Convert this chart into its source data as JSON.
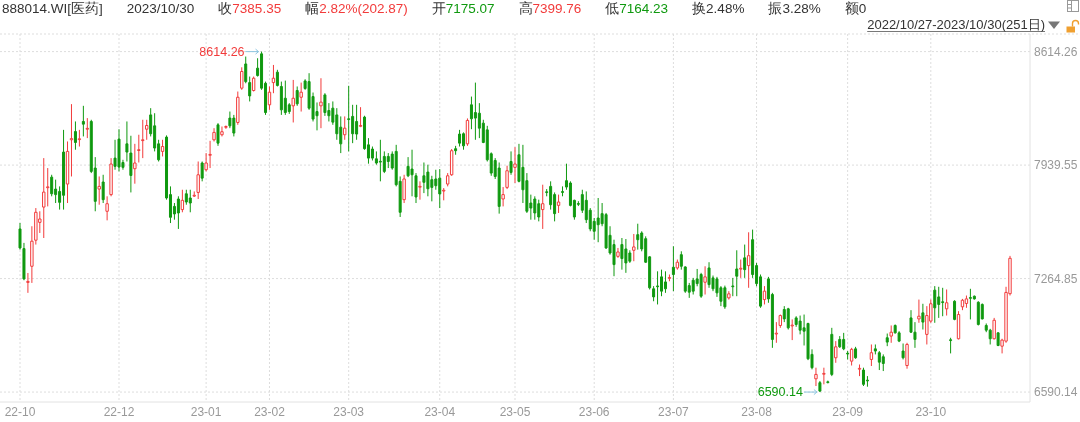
{
  "chart_data": {
    "type": "candlestick",
    "title": "888014.WI[医药]",
    "subtitle": "2022/10/27-2023/10/30(251日)",
    "annotations": [
      "2023/10/30",
      "收7385.35",
      "幅2.82%(202.87)",
      "开7175.07",
      "高7399.76",
      "低7164.23",
      "换2.48%",
      "振3.28%",
      "额0",
      "8614.26",
      "6590.14"
    ],
    "categories": [
      "22-10",
      null,
      null,
      null,
      null,
      null,
      null,
      null,
      null,
      null,
      null,
      null,
      null,
      null,
      null,
      null,
      null,
      null,
      null,
      null,
      null,
      null,
      null,
      null,
      null,
      "22-12",
      null,
      null,
      null,
      null,
      null,
      null,
      null,
      null,
      null,
      null,
      null,
      null,
      null,
      null,
      null,
      null,
      null,
      null,
      null,
      null,
      null,
      "23-01",
      null,
      null,
      null,
      null,
      null,
      null,
      null,
      null,
      null,
      null,
      null,
      null,
      null,
      null,
      null,
      "23-02",
      null,
      null,
      null,
      null,
      null,
      null,
      null,
      null,
      null,
      null,
      null,
      null,
      null,
      null,
      null,
      null,
      null,
      null,
      null,
      "23-03",
      null,
      null,
      null,
      null,
      null,
      null,
      null,
      null,
      null,
      null,
      null,
      null,
      null,
      null,
      null,
      null,
      null,
      null,
      null,
      null,
      null,
      null,
      "23-04",
      null,
      null,
      null,
      null,
      null,
      null,
      null,
      null,
      null,
      null,
      null,
      null,
      null,
      null,
      null,
      null,
      null,
      null,
      "23-05",
      null,
      null,
      null,
      null,
      null,
      null,
      null,
      null,
      null,
      null,
      null,
      null,
      null,
      null,
      null,
      null,
      null,
      null,
      null,
      "23-06",
      null,
      null,
      null,
      null,
      null,
      null,
      null,
      null,
      null,
      null,
      null,
      null,
      null,
      null,
      null,
      null,
      null,
      null,
      null,
      "23-07",
      null,
      null,
      null,
      null,
      null,
      null,
      null,
      null,
      null,
      null,
      null,
      null,
      null,
      null,
      null,
      null,
      null,
      null,
      null,
      null,
      "23-08",
      null,
      null,
      null,
      null,
      null,
      null,
      null,
      null,
      null,
      null,
      null,
      null,
      null,
      null,
      null,
      null,
      null,
      null,
      null,
      null,
      null,
      null,
      "23-09",
      null,
      null,
      null,
      null,
      null,
      null,
      null,
      null,
      null,
      null,
      null,
      null,
      null,
      null,
      null,
      null,
      null,
      null,
      null,
      null,
      "23-10",
      null,
      null,
      null,
      null,
      null,
      null,
      null,
      null,
      null,
      null,
      null,
      null,
      null,
      null,
      null,
      null,
      null,
      null,
      null,
      null
    ],
    "ohlc": [
      [
        7560,
        7595,
        7437,
        7447
      ],
      [
        7443,
        7477,
        7255,
        7263
      ],
      [
        7242,
        7298,
        7180,
        7248
      ],
      [
        7338,
        7576,
        7239,
        7487
      ],
      [
        7493,
        7684,
        7467,
        7659
      ],
      [
        7599,
        7665,
        7536,
        7619
      ],
      [
        7690,
        7981,
        7506,
        7779
      ],
      [
        7806,
        7922,
        7694,
        7810
      ],
      [
        7868,
        7882,
        7754,
        7769
      ],
      [
        7797,
        7853,
        7714,
        7764
      ],
      [
        7783,
        7813,
        7675,
        7718
      ],
      [
        8017,
        8149,
        7675,
        7760
      ],
      [
        7827,
        8080,
        7714,
        8021
      ],
      [
        8090,
        8302,
        7872,
        8097
      ],
      [
        8139,
        8199,
        8031,
        8074
      ],
      [
        8092,
        8149,
        8050,
        8096
      ],
      [
        8199,
        8292,
        8110,
        8183
      ],
      [
        8153,
        8219,
        8100,
        8158
      ],
      [
        8199,
        8209,
        7892,
        7902
      ],
      [
        7922,
        7987,
        7665,
        7724
      ],
      [
        7797,
        7872,
        7704,
        7813
      ],
      [
        7839,
        7882,
        7714,
        7734
      ],
      [
        7665,
        7754,
        7611,
        7710
      ],
      [
        7764,
        7981,
        7754,
        7946
      ],
      [
        7981,
        8090,
        7912,
        7932
      ],
      [
        8094,
        8153,
        7902,
        7928
      ],
      [
        7955,
        7971,
        7912,
        7926
      ],
      [
        8066,
        8199,
        7961,
        8017
      ],
      [
        8011,
        8114,
        7777,
        7878
      ],
      [
        7918,
        8066,
        7829,
        7952
      ],
      [
        8028,
        8120,
        7955,
        8031
      ],
      [
        8088,
        8209,
        7981,
        8090
      ],
      [
        8153,
        8209,
        8090,
        8175
      ],
      [
        8238,
        8278,
        8110,
        8126
      ],
      [
        8173,
        8248,
        8021,
        8041
      ],
      [
        8066,
        8090,
        7961,
        7971
      ],
      [
        8021,
        8090,
        7991,
        8050
      ],
      [
        8106,
        8116,
        7734,
        7744
      ],
      [
        7764,
        7813,
        7595,
        7629
      ],
      [
        7694,
        7714,
        7615,
        7649
      ],
      [
        7738,
        7754,
        7560,
        7655
      ],
      [
        7675,
        7793,
        7659,
        7730
      ],
      [
        7769,
        7793,
        7704,
        7720
      ],
      [
        7744,
        7793,
        7659,
        7714
      ],
      [
        7756,
        7783,
        7750,
        7760
      ],
      [
        7777,
        7961,
        7738,
        7882
      ],
      [
        7952,
        7961,
        7843,
        7862
      ],
      [
        7912,
        8011,
        7902,
        7952
      ],
      [
        7998,
        8084,
        7922,
        8003
      ],
      [
        8090,
        8159,
        8080,
        8134
      ],
      [
        8179,
        8189,
        8054,
        8070
      ],
      [
        8120,
        8169,
        8110,
        8138
      ],
      [
        8165,
        8175,
        8155,
        8169
      ],
      [
        8219,
        8258,
        8159,
        8173
      ],
      [
        8219,
        8238,
        8110,
        8130
      ],
      [
        8193,
        8377,
        8179,
        8343
      ],
      [
        8397,
        8521,
        8387,
        8496
      ],
      [
        8541,
        8585,
        8426,
        8436
      ],
      [
        8430,
        8466,
        8318,
        8351
      ],
      [
        8383,
        8466,
        8377,
        8456
      ],
      [
        8516,
        8575,
        8466,
        8472
      ],
      [
        8601,
        8614.26,
        8387,
        8397
      ],
      [
        8426,
        8436,
        8238,
        8252
      ],
      [
        8298,
        8407,
        8268,
        8373
      ],
      [
        8430,
        8535,
        8367,
        8456
      ],
      [
        8492,
        8506,
        8407,
        8413
      ],
      [
        8407,
        8436,
        8238,
        8268
      ],
      [
        8337,
        8442,
        8238,
        8252
      ],
      [
        8298,
        8308,
        8244,
        8258
      ],
      [
        8292,
        8446,
        8193,
        8337
      ],
      [
        8383,
        8407,
        8292,
        8304
      ],
      [
        8343,
        8430,
        8258,
        8373
      ],
      [
        8440,
        8450,
        8387,
        8395
      ],
      [
        8436,
        8486,
        8268,
        8278
      ],
      [
        8347,
        8371,
        8199,
        8213
      ],
      [
        8258,
        8312,
        8146,
        8233
      ],
      [
        8292,
        8456,
        8159,
        8314
      ],
      [
        8357,
        8367,
        8232,
        8252
      ],
      [
        8264,
        8308,
        8199,
        8233
      ],
      [
        8278,
        8318,
        8179,
        8195
      ],
      [
        8238,
        8278,
        8090,
        8126
      ],
      [
        8165,
        8229,
        8011,
        8066
      ],
      [
        8120,
        8229,
        8090,
        8159
      ],
      [
        8215,
        8411,
        8021,
        8213
      ],
      [
        8229,
        8298,
        8070,
        8126
      ],
      [
        8199,
        8298,
        8090,
        8124
      ],
      [
        8171,
        8284,
        8165,
        8175
      ],
      [
        8225,
        8233,
        8031,
        8037
      ],
      [
        8060,
        8100,
        7948,
        7981
      ],
      [
        8035,
        8050,
        7967,
        7981
      ],
      [
        7977,
        8021,
        7942,
        7952
      ],
      [
        7962,
        8090,
        7843,
        7958
      ],
      [
        7991,
        8021,
        7892,
        7902
      ],
      [
        7991,
        8011,
        7922,
        7961
      ],
      [
        8005,
        8021,
        7912,
        7922
      ],
      [
        8021,
        8060,
        7813,
        7823
      ],
      [
        7843,
        7872,
        7631,
        7659
      ],
      [
        7734,
        7882,
        7714,
        7857
      ],
      [
        7932,
        7987,
        7868,
        7876
      ],
      [
        7916,
        8031,
        7754,
        7882
      ],
      [
        7876,
        7892,
        7714,
        7750
      ],
      [
        7809,
        7843,
        7734,
        7813
      ],
      [
        7876,
        7955,
        7773,
        7837
      ],
      [
        7898,
        7942,
        7754,
        7799
      ],
      [
        7853,
        7876,
        7724,
        7807
      ],
      [
        7857,
        7912,
        7793,
        7817
      ],
      [
        7862,
        7916,
        7684,
        7768
      ],
      [
        7787,
        7803,
        7730,
        7790
      ],
      [
        7827,
        7892,
        7813,
        7876
      ],
      [
        7882,
        8035,
        7876,
        8025
      ],
      [
        8037,
        8054,
        8001,
        8025
      ],
      [
        8124,
        8149,
        8050,
        8070
      ],
      [
        8126,
        8134,
        8031,
        8054
      ],
      [
        8066,
        8217,
        8054,
        8205
      ],
      [
        8298,
        8347,
        8153,
        8215
      ],
      [
        8252,
        8430,
        8090,
        8219
      ],
      [
        8248,
        8308,
        8100,
        8159
      ],
      [
        8189,
        8209,
        8070,
        8074
      ],
      [
        8149,
        8173,
        7961,
        7971
      ],
      [
        8007,
        8015,
        7876,
        7892
      ],
      [
        7967,
        7981,
        7857,
        7872
      ],
      [
        7922,
        7955,
        7651,
        7694
      ],
      [
        7738,
        7809,
        7694,
        7764
      ],
      [
        7807,
        7936,
        7797,
        7906
      ],
      [
        7961,
        8021,
        7882,
        7896
      ],
      [
        7926,
        8046,
        7833,
        7946
      ],
      [
        8001,
        8066,
        7837,
        7843
      ],
      [
        7926,
        8060,
        7714,
        7793
      ],
      [
        7847,
        7892,
        7655,
        7665
      ],
      [
        7714,
        7764,
        7615,
        7684
      ],
      [
        7738,
        7754,
        7615,
        7655
      ],
      [
        7710,
        7734,
        7605,
        7631
      ],
      [
        7675,
        7823,
        7560,
        7710
      ],
      [
        7781,
        7797,
        7754,
        7779
      ],
      [
        7813,
        7843,
        7675,
        7704
      ],
      [
        7764,
        7777,
        7605,
        7651
      ],
      [
        7700,
        7764,
        7655,
        7720
      ],
      [
        7782,
        7813,
        7754,
        7780
      ],
      [
        7847,
        7948,
        7793,
        7809
      ],
      [
        7833,
        7843,
        7694,
        7700
      ],
      [
        7730,
        7734,
        7615,
        7631
      ],
      [
        7711,
        7725,
        7696,
        7709
      ],
      [
        7764,
        7793,
        7655,
        7671
      ],
      [
        7730,
        7783,
        7595,
        7615
      ],
      [
        7671,
        7684,
        7546,
        7560
      ],
      [
        7605,
        7625,
        7496,
        7546
      ],
      [
        7625,
        7744,
        7481,
        7585
      ],
      [
        7651,
        7714,
        7576,
        7591
      ],
      [
        7645,
        7655,
        7441,
        7447
      ],
      [
        7522,
        7576,
        7407,
        7417
      ],
      [
        7467,
        7496,
        7279,
        7348
      ],
      [
        7397,
        7447,
        7388,
        7423
      ],
      [
        7467,
        7506,
        7318,
        7384
      ],
      [
        7441,
        7500,
        7299,
        7358
      ],
      [
        7417,
        7433,
        7358,
        7368
      ],
      [
        7433,
        7530,
        7368,
        7453
      ],
      [
        7526,
        7591,
        7437,
        7496
      ],
      [
        7536,
        7546,
        7427,
        7441
      ],
      [
        7502,
        7516,
        7358,
        7362
      ],
      [
        7394,
        7398,
        7200,
        7210
      ],
      [
        7204,
        7220,
        7130,
        7156
      ],
      [
        7221,
        7308,
        7111,
        7219
      ],
      [
        7275,
        7318,
        7160,
        7190
      ],
      [
        7245,
        7308,
        7180,
        7204
      ],
      [
        7268,
        7289,
        7249,
        7271
      ],
      [
        7332,
        7457,
        7190,
        7289
      ],
      [
        7328,
        7378,
        7318,
        7362
      ],
      [
        7407,
        7427,
        7318,
        7338
      ],
      [
        7334,
        7338,
        7180,
        7190
      ],
      [
        7223,
        7239,
        7150,
        7184
      ],
      [
        7255,
        7269,
        7170,
        7190
      ],
      [
        7263,
        7322,
        7219,
        7235
      ],
      [
        7289,
        7299,
        7150,
        7160
      ],
      [
        7243,
        7338,
        7170,
        7275
      ],
      [
        7328,
        7362,
        7210,
        7229
      ],
      [
        7269,
        7283,
        7190,
        7204
      ],
      [
        7263,
        7275,
        7156,
        7180
      ],
      [
        7210,
        7220,
        7101,
        7130
      ],
      [
        7210,
        7223,
        7085,
        7097
      ],
      [
        7150,
        7190,
        7140,
        7174
      ],
      [
        7221,
        7269,
        7160,
        7219
      ],
      [
        7322,
        7433,
        7160,
        7279
      ],
      [
        7322,
        7378,
        7269,
        7326
      ],
      [
        7388,
        7467,
        7269,
        7318
      ],
      [
        7342,
        7540,
        7210,
        7401
      ],
      [
        7496,
        7556,
        7269,
        7289
      ],
      [
        7342,
        7358,
        7219,
        7235
      ],
      [
        7275,
        7289,
        7091,
        7101
      ],
      [
        7140,
        7220,
        7111,
        7190
      ],
      [
        7263,
        7275,
        7121,
        7144
      ],
      [
        7170,
        7180,
        6853,
        6903
      ],
      [
        6936,
        7006,
        6883,
        6940
      ],
      [
        6986,
        7051,
        6972,
        7045
      ],
      [
        7081,
        7101,
        7006,
        7025
      ],
      [
        7085,
        7091,
        6962,
        6972
      ],
      [
        6984,
        7022,
        6899,
        6988
      ],
      [
        7031,
        7041,
        6978,
        6992
      ],
      [
        7012,
        7045,
        6933,
        6958
      ],
      [
        6972,
        7051,
        6867,
        6952
      ],
      [
        6998,
        7002,
        6780,
        6788
      ],
      [
        6814,
        6844,
        6725,
        6735
      ],
      [
        6669,
        6735,
        6626,
        6695
      ],
      [
        6646,
        6656,
        6590.14,
        6596
      ],
      [
        6697,
        6735,
        6636,
        6701
      ],
      [
        6651,
        6658,
        6642,
        6648
      ],
      [
        6933,
        6972,
        6685,
        6695
      ],
      [
        6794,
        6893,
        6764,
        6859
      ],
      [
        6903,
        6923,
        6853,
        6859
      ],
      [
        6903,
        6942,
        6839,
        6847
      ],
      [
        6821,
        6834,
        6784,
        6819
      ],
      [
        6774,
        6853,
        6748,
        6844
      ],
      [
        6847,
        6859,
        6788,
        6794
      ],
      [
        6727,
        6754,
        6685,
        6731
      ],
      [
        6721,
        6735,
        6626,
        6636
      ],
      [
        6661,
        6685,
        6622,
        6659
      ],
      [
        6784,
        6873,
        6745,
        6824
      ],
      [
        6847,
        6873,
        6814,
        6834
      ],
      [
        6824,
        6834,
        6721,
        6768
      ],
      [
        6800,
        6814,
        6715,
        6760
      ],
      [
        6913,
        6938,
        6863,
        6887
      ],
      [
        6923,
        6986,
        6883,
        6946
      ],
      [
        6986,
        6992,
        6938,
        6942
      ],
      [
        6942,
        6952,
        6887,
        6893
      ],
      [
        6834,
        6879,
        6784,
        6794
      ],
      [
        6748,
        6883,
        6729,
        6873
      ],
      [
        7031,
        7077,
        6942,
        6946
      ],
      [
        6946,
        7006,
        6853,
        6903
      ],
      [
        7025,
        7140,
        7002,
        7041
      ],
      [
        7061,
        7115,
        6962,
        7006
      ],
      [
        6933,
        7101,
        6873,
        7045
      ],
      [
        7012,
        7140,
        7002,
        7115
      ],
      [
        7196,
        7220,
        7002,
        7091
      ],
      [
        7156,
        7216,
        7031,
        7111
      ],
      [
        7127,
        7210,
        7041,
        7124
      ],
      [
        7085,
        7200,
        7045,
        7121
      ],
      [
        6901,
        6913,
        6820,
        6897
      ],
      [
        7130,
        7136,
        7017,
        7022
      ],
      [
        6907,
        7071,
        6903,
        7051
      ],
      [
        7097,
        7144,
        7077,
        7136
      ],
      [
        7117,
        7164,
        7091,
        7144
      ],
      [
        7152,
        7204,
        7022,
        7148
      ],
      [
        7160,
        7164,
        7140,
        7144
      ],
      [
        7124,
        7130,
        6986,
        6992
      ],
      [
        7111,
        7117,
        7022,
        7025
      ],
      [
        6986,
        6998,
        6946,
        6958
      ],
      [
        6958,
        6966,
        6873,
        6907
      ],
      [
        6907,
        7031,
        6903,
        7017
      ],
      [
        6942,
        6946,
        6863,
        6867
      ],
      [
        6863,
        6907,
        6820,
        6899
      ],
      [
        6893,
        7216,
        6883,
        7182.48
      ],
      [
        7175.07,
        7399.76,
        7164.23,
        7385.35
      ]
    ],
    "colors": [
      "#0f990f",
      "#0f990f",
      "#f23b3b",
      "#f23b3b",
      "#f23b3b",
      "#f23b3b",
      "#f23b3b",
      "#f23b3b",
      "#0f990f",
      "#0f990f",
      "#0f990f",
      "#0f990f",
      "#f23b3b",
      "#f23b3b",
      "#0f990f",
      "#f23b3b",
      "#0f990f",
      "#f23b3b",
      "#0f990f",
      "#0f990f",
      "#f23b3b",
      "#0f990f",
      "#f23b3b",
      "#f23b3b",
      "#0f990f",
      "#0f990f",
      "#0f990f",
      "#0f990f",
      "#0f990f",
      "#f23b3b",
      "#f23b3b",
      "#f23b3b",
      "#f23b3b",
      "#0f990f",
      "#0f990f",
      "#0f990f",
      "#f23b3b",
      "#0f990f",
      "#0f990f",
      "#0f990f",
      "#0f990f",
      "#f23b3b",
      "#0f990f",
      "#0f990f",
      "#f23b3b",
      "#f23b3b",
      "#0f990f",
      "#f23b3b",
      "#f23b3b",
      "#f23b3b",
      "#0f990f",
      "#f23b3b",
      "#f23b3b",
      "#0f990f",
      "#0f990f",
      "#f23b3b",
      "#f23b3b",
      "#0f990f",
      "#0f990f",
      "#f23b3b",
      "#0f990f",
      "#0f990f",
      "#0f990f",
      "#f23b3b",
      "#f23b3b",
      "#0f990f",
      "#0f990f",
      "#0f990f",
      "#0f990f",
      "#f23b3b",
      "#0f990f",
      "#f23b3b",
      "#0f990f",
      "#0f990f",
      "#0f990f",
      "#0f990f",
      "#f23b3b",
      "#0f990f",
      "#0f990f",
      "#0f990f",
      "#0f990f",
      "#0f990f",
      "#f23b3b",
      "#0f990f",
      "#0f990f",
      "#0f990f",
      "#f23b3b",
      "#0f990f",
      "#0f990f",
      "#0f990f",
      "#0f990f",
      "#0f990f",
      "#0f990f",
      "#0f990f",
      "#0f990f",
      "#0f990f",
      "#0f990f",
      "#f23b3b",
      "#0f990f",
      "#0f990f",
      "#0f990f",
      "#f23b3b",
      "#0f990f",
      "#0f990f",
      "#0f990f",
      "#0f990f",
      "#0f990f",
      "#f23b3b",
      "#f23b3b",
      "#f23b3b",
      "#0f990f",
      "#0f990f",
      "#0f990f",
      "#f23b3b",
      "#0f990f",
      "#0f990f",
      "#0f990f",
      "#0f990f",
      "#0f990f",
      "#0f990f",
      "#0f990f",
      "#0f990f",
      "#f23b3b",
      "#f23b3b",
      "#0f990f",
      "#f23b3b",
      "#0f990f",
      "#0f990f",
      "#0f990f",
      "#0f990f",
      "#0f990f",
      "#0f990f",
      "#f23b3b",
      "#0f990f",
      "#0f990f",
      "#0f990f",
      "#f23b3b",
      "#0f990f",
      "#0f990f",
      "#0f990f",
      "#0f990f",
      "#0f990f",
      "#0f990f",
      "#0f990f",
      "#0f990f",
      "#0f990f",
      "#0f990f",
      "#0f990f",
      "#0f990f",
      "#0f990f",
      "#0f990f",
      "#f23b3b",
      "#0f990f",
      "#0f990f",
      "#0f990f",
      "#f23b3b",
      "#0f990f",
      "#0f990f",
      "#0f990f",
      "#0f990f",
      "#0f990f",
      "#0f990f",
      "#0f990f",
      "#0f990f",
      "#f23b3b",
      "#0f990f",
      "#f23b3b",
      "#0f990f",
      "#0f990f",
      "#0f990f",
      "#0f990f",
      "#0f990f",
      "#0f990f",
      "#f23b3b",
      "#0f990f",
      "#0f990f",
      "#0f990f",
      "#0f990f",
      "#0f990f",
      "#f23b3b",
      "#0f990f",
      "#0f990f",
      "#f23b3b",
      "#0f990f",
      "#f23b3b",
      "#0f990f",
      "#0f990f",
      "#0f990f",
      "#f23b3b",
      "#0f990f",
      "#0f990f",
      "#f23b3b",
      "#f23b3b",
      "#0f990f",
      "#0f990f",
      "#f23b3b",
      "#0f990f",
      "#0f990f",
      "#0f990f",
      "#0f990f",
      "#0f990f",
      "#f23b3b",
      "#0f990f",
      "#f23b3b",
      "#0f990f",
      "#0f990f",
      "#f23b3b",
      "#0f990f",
      "#0f990f",
      "#0f990f",
      "#f23b3b",
      "#0f990f",
      "#f23b3b",
      "#0f990f",
      "#0f990f",
      "#f23b3b",
      "#0f990f",
      "#0f990f",
      "#0f990f",
      "#0f990f",
      "#f23b3b",
      "#0f990f",
      "#0f990f",
      "#0f990f",
      "#f23b3b",
      "#0f990f",
      "#0f990f",
      "#f23b3b",
      "#0f990f",
      "#f23b3b",
      "#f23b3b",
      "#0f990f",
      "#0f990f",
      "#0f990f",
      "#f23b3b",
      "#0f990f",
      "#0f990f",
      "#f23b3b",
      "#f23b3b",
      "#f23b3b",
      "#0f990f",
      "#0f990f",
      "#0f990f",
      "#0f990f",
      "#0f990f",
      "#0f990f",
      "#f23b3b",
      "#0f990f",
      "#f23b3b",
      "#f23b3b",
      "#f23b3b"
    ],
    "ylim": [
      6531,
      8719
    ],
    "yticks": [
      6590.14,
      7264.85,
      7939.55,
      8614.26
    ],
    "grid": true
  }
}
